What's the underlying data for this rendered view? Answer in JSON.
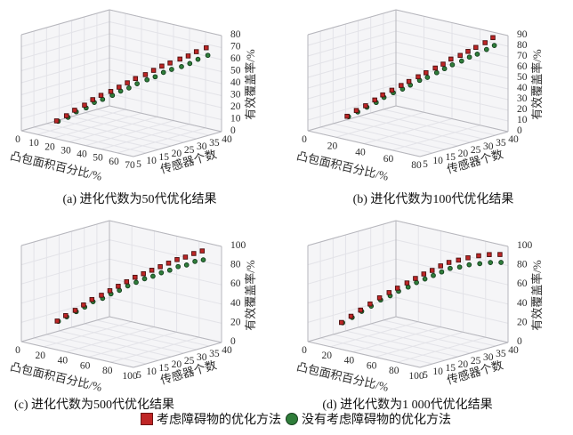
{
  "legend": {
    "items": [
      {
        "label": "考虑障碍物的优化方法",
        "marker": "square",
        "color": "#bf2626",
        "edge_color": "#4a0f0f"
      },
      {
        "label": "没有考虑障碍物的优化方法",
        "marker": "circle",
        "color": "#2f7d3a",
        "edge_color": "#123c1c"
      }
    ]
  },
  "chart_data": [
    {
      "id": "a",
      "type": "scatter",
      "caption": "(a) 进化代数为50代优化结果",
      "xlabel": "凸包面积百分比/%",
      "ylabel": "传感器个数",
      "zlabel": "有效覆盖率/%",
      "xlim": [
        0,
        70
      ],
      "xticks": [
        0,
        10,
        20,
        30,
        40,
        50,
        60,
        70
      ],
      "ylim": [
        5,
        40
      ],
      "yticks": [
        5,
        10,
        15,
        20,
        25,
        30,
        35,
        40
      ],
      "zlim": [
        0,
        80
      ],
      "zticks": [
        0,
        10,
        20,
        30,
        40,
        50,
        60,
        70,
        80
      ],
      "grid": true,
      "series": [
        {
          "name": "考虑障碍物的优化方法",
          "marker": "square",
          "color": "#bf2626",
          "edge": "#4a0f0f",
          "points": [
            [
              22,
              5,
              15
            ],
            [
              25,
              7,
              19
            ],
            [
              27,
              9,
              23
            ],
            [
              30,
              11,
              27
            ],
            [
              32,
              13,
              31
            ],
            [
              34,
              15,
              34
            ],
            [
              37,
              17,
              37
            ],
            [
              39,
              19,
              40
            ],
            [
              41,
              21,
              43
            ],
            [
              43,
              23,
              46
            ],
            [
              46,
              25,
              49
            ],
            [
              48,
              27,
              52
            ],
            [
              50,
              29,
              55
            ],
            [
              52,
              31,
              57
            ],
            [
              55,
              33,
              60
            ],
            [
              57,
              35,
              62
            ],
            [
              59,
              37,
              65
            ],
            [
              62,
              39,
              68
            ]
          ]
        },
        {
          "name": "没有考虑障碍物的优化方法",
          "marker": "circle",
          "color": "#2f7d3a",
          "edge": "#123c1c",
          "points": [
            [
              23,
              5,
              15
            ],
            [
              26,
              7,
              18
            ],
            [
              28,
              9,
              22
            ],
            [
              31,
              11,
              25
            ],
            [
              33,
              13,
              29
            ],
            [
              35,
              15,
              31
            ],
            [
              38,
              17,
              34
            ],
            [
              40,
              19,
              37
            ],
            [
              42,
              21,
              39
            ],
            [
              44,
              23,
              42
            ],
            [
              47,
              25,
              45
            ],
            [
              49,
              27,
              47
            ],
            [
              51,
              29,
              50
            ],
            [
              53,
              31,
              52
            ],
            [
              56,
              33,
              54
            ],
            [
              58,
              35,
              56
            ],
            [
              60,
              37,
              59
            ],
            [
              63,
              39,
              62
            ]
          ]
        }
      ]
    },
    {
      "id": "b",
      "type": "scatter",
      "caption": "(b) 进化代数为100代优化结果",
      "xlabel": "凸包面积百分比/%",
      "ylabel": "传感器个数",
      "zlabel": "有效覆盖率/%",
      "xlim": [
        0,
        80
      ],
      "xticks": [
        0,
        20,
        40,
        60,
        80
      ],
      "ylim": [
        5,
        40
      ],
      "yticks": [
        5,
        10,
        15,
        20,
        25,
        30,
        35,
        40
      ],
      "zlim": [
        0,
        90
      ],
      "zticks": [
        0,
        10,
        20,
        30,
        40,
        50,
        60,
        70,
        80,
        90
      ],
      "grid": true,
      "series": [
        {
          "name": "考虑障碍物的优化方法",
          "marker": "square",
          "color": "#bf2626",
          "edge": "#4a0f0f",
          "points": [
            [
              28,
              5,
              22
            ],
            [
              31,
              7,
              27
            ],
            [
              34,
              9,
              31
            ],
            [
              37,
              11,
              36
            ],
            [
              39,
              13,
              40
            ],
            [
              42,
              15,
              44
            ],
            [
              45,
              17,
              48
            ],
            [
              47,
              19,
              51
            ],
            [
              50,
              21,
              55
            ],
            [
              52,
              23,
              58
            ],
            [
              55,
              25,
              62
            ],
            [
              57,
              27,
              65
            ],
            [
              59,
              29,
              69
            ],
            [
              62,
              31,
              72
            ],
            [
              64,
              33,
              75
            ],
            [
              66,
              35,
              78
            ],
            [
              69,
              37,
              82
            ],
            [
              71,
              39,
              86
            ]
          ]
        },
        {
          "name": "没有考虑障碍物的优化方法",
          "marker": "circle",
          "color": "#2f7d3a",
          "edge": "#123c1c",
          "points": [
            [
              29,
              5,
              22
            ],
            [
              32,
              7,
              26
            ],
            [
              35,
              9,
              30
            ],
            [
              38,
              11,
              34
            ],
            [
              40,
              13,
              38
            ],
            [
              43,
              15,
              42
            ],
            [
              46,
              17,
              45
            ],
            [
              48,
              19,
              48
            ],
            [
              51,
              21,
              52
            ],
            [
              53,
              23,
              54
            ],
            [
              56,
              25,
              58
            ],
            [
              58,
              27,
              61
            ],
            [
              60,
              29,
              64
            ],
            [
              63,
              31,
              67
            ],
            [
              65,
              33,
              70
            ],
            [
              67,
              35,
              72
            ],
            [
              70,
              37,
              76
            ],
            [
              72,
              39,
              79
            ]
          ]
        }
      ]
    },
    {
      "id": "c",
      "type": "scatter",
      "caption": "(c) 进化代数为500代优化结果",
      "xlabel": "凸包面积百分比/%",
      "ylabel": "传感器个数",
      "zlabel": "有效覆盖率/%",
      "xlim": [
        0,
        100
      ],
      "xticks": [
        0,
        20,
        40,
        60,
        80,
        100
      ],
      "ylim": [
        5,
        40
      ],
      "yticks": [
        5,
        10,
        15,
        20,
        25,
        30,
        35,
        40
      ],
      "zlim": [
        0,
        100
      ],
      "zticks": [
        0,
        20,
        40,
        60,
        80,
        100
      ],
      "grid": true,
      "series": [
        {
          "name": "考虑障碍物的优化方法",
          "marker": "square",
          "color": "#bf2626",
          "edge": "#4a0f0f",
          "points": [
            [
              32,
              5,
              30
            ],
            [
              35,
              7,
              35
            ],
            [
              39,
              9,
              40
            ],
            [
              42,
              11,
              45
            ],
            [
              45,
              13,
              50
            ],
            [
              49,
              15,
              54
            ],
            [
              52,
              17,
              58
            ],
            [
              55,
              19,
              62
            ],
            [
              58,
              21,
              66
            ],
            [
              61,
              23,
              70
            ],
            [
              64,
              25,
              73
            ],
            [
              67,
              27,
              76
            ],
            [
              70,
              29,
              79
            ],
            [
              73,
              31,
              82
            ],
            [
              76,
              33,
              85
            ],
            [
              79,
              35,
              87
            ],
            [
              82,
              37,
              90
            ],
            [
              85,
              39,
              92
            ]
          ]
        },
        {
          "name": "没有考虑障碍物的优化方法",
          "marker": "circle",
          "color": "#2f7d3a",
          "edge": "#123c1c",
          "points": [
            [
              33,
              5,
              30
            ],
            [
              36,
              7,
              34
            ],
            [
              40,
              9,
              39
            ],
            [
              43,
              11,
              43
            ],
            [
              46,
              13,
              48
            ],
            [
              50,
              15,
              51
            ],
            [
              53,
              17,
              55
            ],
            [
              56,
              19,
              58
            ],
            [
              59,
              21,
              62
            ],
            [
              62,
              23,
              65
            ],
            [
              65,
              25,
              68
            ],
            [
              68,
              27,
              70
            ],
            [
              71,
              29,
              73
            ],
            [
              74,
              31,
              75
            ],
            [
              77,
              33,
              78
            ],
            [
              80,
              35,
              79
            ],
            [
              83,
              37,
              82
            ],
            [
              86,
              39,
              83
            ]
          ]
        }
      ]
    },
    {
      "id": "d",
      "type": "scatter",
      "caption": "(d) 进化代数为1 000代优化结果",
      "xlabel": "凸包面积百分比/%",
      "ylabel": "传感器个数",
      "zlabel": "有效覆盖率/%",
      "xlim": [
        0,
        100
      ],
      "xticks": [
        0,
        20,
        40,
        60,
        80,
        100
      ],
      "ylim": [
        5,
        40
      ],
      "yticks": [
        5,
        10,
        15,
        20,
        25,
        30,
        35,
        40
      ],
      "zlim": [
        0,
        100
      ],
      "zticks": [
        0,
        20,
        40,
        60,
        80,
        100
      ],
      "grid": true,
      "series": [
        {
          "name": "考虑障碍物的优化方法",
          "marker": "square",
          "color": "#bf2626",
          "edge": "#4a0f0f",
          "points": [
            [
              30,
              5,
              28
            ],
            [
              34,
              7,
              34
            ],
            [
              38,
              9,
              40
            ],
            [
              42,
              11,
              46
            ],
            [
              46,
              13,
              52
            ],
            [
              50,
              15,
              57
            ],
            [
              53,
              17,
              61
            ],
            [
              57,
              19,
              66
            ],
            [
              60,
              21,
              70
            ],
            [
              63,
              23,
              74
            ],
            [
              66,
              25,
              77
            ],
            [
              69,
              27,
              81
            ],
            [
              72,
              29,
              84
            ],
            [
              76,
              31,
              86
            ],
            [
              80,
              33,
              88
            ],
            [
              85,
              35,
              90
            ],
            [
              90,
              37,
              91
            ],
            [
              95,
              39,
              91
            ]
          ]
        },
        {
          "name": "没有考虑障碍物的优化方法",
          "marker": "circle",
          "color": "#2f7d3a",
          "edge": "#123c1c",
          "points": [
            [
              31,
              5,
              28
            ],
            [
              35,
              7,
              33
            ],
            [
              39,
              9,
              39
            ],
            [
              43,
              11,
              44
            ],
            [
              47,
              13,
              50
            ],
            [
              51,
              15,
              54
            ],
            [
              54,
              17,
              58
            ],
            [
              58,
              19,
              62
            ],
            [
              61,
              21,
              66
            ],
            [
              64,
              23,
              69
            ],
            [
              67,
              25,
              72
            ],
            [
              70,
              27,
              75
            ],
            [
              73,
              29,
              78
            ],
            [
              77,
              31,
              79
            ],
            [
              81,
              33,
              81
            ],
            [
              86,
              35,
              82
            ],
            [
              91,
              37,
              83
            ],
            [
              96,
              39,
              83
            ]
          ]
        }
      ]
    }
  ]
}
